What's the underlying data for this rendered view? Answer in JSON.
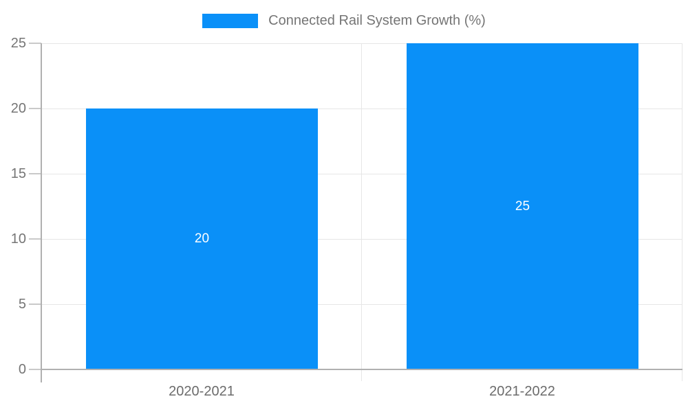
{
  "chart_data": {
    "type": "bar",
    "legend": "Connected Rail System Growth (%)",
    "legend_position": "top",
    "categories": [
      "2020-2021",
      "2021-2022"
    ],
    "values": [
      20,
      25
    ],
    "ylim": [
      0,
      25
    ],
    "yticks": [
      0,
      5,
      10,
      15,
      20,
      25
    ],
    "grid": true,
    "xlabel": "",
    "ylabel": "",
    "colors": {
      "bar": "#0a90f8",
      "gridline": "#e6e6e6",
      "axis": "#b0b0b0",
      "tick": "#c9c9c9",
      "y_label_text": "#757575",
      "x_label_text": "#6b6b6b",
      "legend_text": "#757575",
      "value_label_text": "#ffffff"
    }
  }
}
